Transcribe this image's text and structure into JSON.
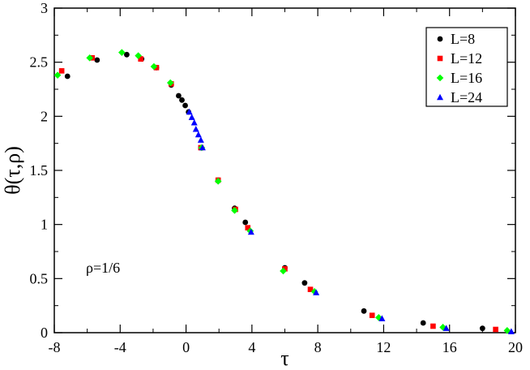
{
  "chart_data": {
    "type": "scatter",
    "xlabel": "τ",
    "ylabel": "θ(τ,ρ)",
    "xlim": [
      -8,
      20
    ],
    "ylim": [
      0,
      3
    ],
    "xticks": [
      -8,
      -4,
      0,
      4,
      8,
      12,
      16,
      20
    ],
    "xtick_labels": [
      "-8",
      "-4",
      "0",
      "4",
      "8",
      "12",
      "16",
      "20"
    ],
    "yticks": [
      0,
      0.5,
      1,
      1.5,
      2,
      2.5,
      3
    ],
    "ytick_labels": [
      "0",
      "0.5",
      "1",
      "1.5",
      "2",
      "2.5",
      "3"
    ],
    "grid": false,
    "legend_position": "top-right",
    "annotation": "ρ=1/6",
    "series": [
      {
        "name": "L=8",
        "marker": "circle",
        "color": "#000000",
        "points": [
          [
            -7.2,
            2.37
          ],
          [
            -5.4,
            2.52
          ],
          [
            -3.6,
            2.57
          ],
          [
            -2.7,
            2.53
          ],
          [
            -1.8,
            2.45
          ],
          [
            -0.9,
            2.29
          ],
          [
            -0.45,
            2.19
          ],
          [
            -0.25,
            2.15
          ],
          [
            -0.05,
            2.1
          ],
          [
            0.15,
            2.04
          ],
          [
            0.9,
            1.71
          ],
          [
            1.95,
            1.41
          ],
          [
            2.95,
            1.15
          ],
          [
            3.6,
            1.02
          ],
          [
            6.0,
            0.6
          ],
          [
            7.2,
            0.46
          ],
          [
            10.8,
            0.2
          ],
          [
            14.4,
            0.09
          ],
          [
            18.0,
            0.04
          ]
        ]
      },
      {
        "name": "L=12",
        "marker": "square",
        "color": "#ff0000",
        "points": [
          [
            -7.55,
            2.42
          ],
          [
            -5.7,
            2.54
          ],
          [
            -2.75,
            2.53
          ],
          [
            -1.8,
            2.45
          ],
          [
            -0.9,
            2.3
          ],
          [
            0.9,
            1.71
          ],
          [
            1.95,
            1.41
          ],
          [
            3.0,
            1.14
          ],
          [
            3.75,
            0.97
          ],
          [
            6.0,
            0.59
          ],
          [
            7.55,
            0.4
          ],
          [
            11.3,
            0.16
          ],
          [
            15.0,
            0.06
          ],
          [
            18.8,
            0.03
          ]
        ]
      },
      {
        "name": "L=16",
        "marker": "diamond",
        "color": "#00ff00",
        "points": [
          [
            -7.8,
            2.38
          ],
          [
            -5.85,
            2.54
          ],
          [
            -3.9,
            2.59
          ],
          [
            -2.9,
            2.56
          ],
          [
            -1.95,
            2.46
          ],
          [
            -0.95,
            2.31
          ],
          [
            0.95,
            1.71
          ],
          [
            1.95,
            1.4
          ],
          [
            2.95,
            1.13
          ],
          [
            3.9,
            0.94
          ],
          [
            5.9,
            0.57
          ],
          [
            7.8,
            0.38
          ],
          [
            11.7,
            0.14
          ],
          [
            15.6,
            0.05
          ],
          [
            19.5,
            0.02
          ]
        ]
      },
      {
        "name": "L=24",
        "marker": "triangle",
        "color": "#0000ff",
        "points": [
          [
            0.2,
            2.04
          ],
          [
            0.35,
            1.99
          ],
          [
            0.5,
            1.94
          ],
          [
            0.6,
            1.88
          ],
          [
            0.75,
            1.83
          ],
          [
            0.9,
            1.78
          ],
          [
            1.0,
            1.71
          ],
          [
            3.95,
            0.93
          ],
          [
            7.9,
            0.37
          ],
          [
            11.9,
            0.13
          ],
          [
            15.8,
            0.04
          ],
          [
            19.75,
            0.01
          ]
        ]
      }
    ]
  }
}
